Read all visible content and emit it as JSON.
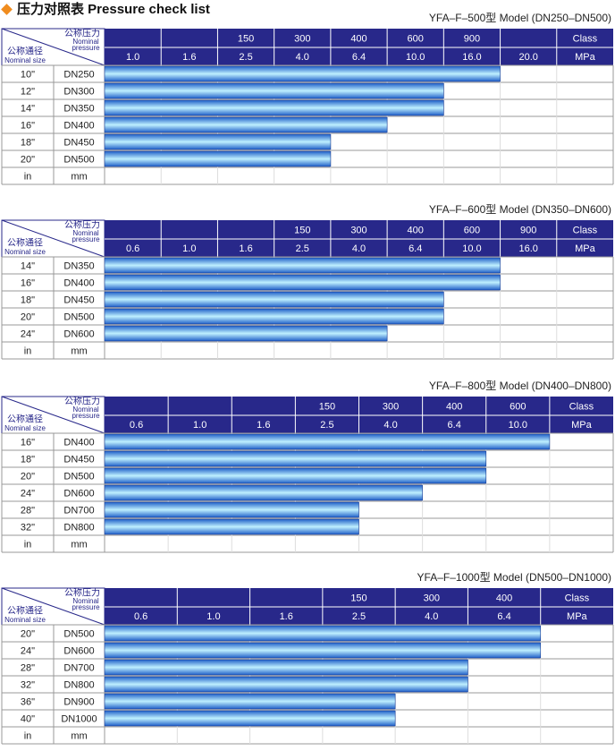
{
  "header": {
    "title": "压力对照表 Pressure check list"
  },
  "corner": {
    "pressure_cn": "公称压力",
    "pressure_en_1": "Nominal",
    "pressure_en_2": "pressure",
    "size_cn": "公称通径",
    "size_en": "Nominal size"
  },
  "tables": [
    {
      "model": "YFA–F–500型  Model (DN250–DN500)",
      "class_row": [
        null,
        null,
        "150",
        "300",
        "400",
        "600",
        "900",
        null,
        "Class"
      ],
      "mpa_row": [
        "1.0",
        "1.6",
        "2.5",
        "4.0",
        "6.4",
        "10.0",
        "16.0",
        "20.0",
        "MPa"
      ],
      "rows": [
        {
          "inch": "10\"",
          "dn": "DN250",
          "rating_mpa": 16.0
        },
        {
          "inch": "12\"",
          "dn": "DN300",
          "rating_mpa": 10.0
        },
        {
          "inch": "14\"",
          "dn": "DN350",
          "rating_mpa": 10.0
        },
        {
          "inch": "16\"",
          "dn": "DN400",
          "rating_mpa": 6.4
        },
        {
          "inch": "18\"",
          "dn": "DN450",
          "rating_mpa": 4.0
        },
        {
          "inch": "20\"",
          "dn": "DN500",
          "rating_mpa": 4.0
        }
      ],
      "unit_row": [
        "in",
        "mm"
      ]
    },
    {
      "model": "YFA–F–600型  Model (DN350–DN600)",
      "class_row": [
        null,
        null,
        null,
        "150",
        "300",
        "400",
        "600",
        "900",
        "Class"
      ],
      "mpa_row": [
        "0.6",
        "1.0",
        "1.6",
        "2.5",
        "4.0",
        "6.4",
        "10.0",
        "16.0",
        "MPa"
      ],
      "rows": [
        {
          "inch": "14\"",
          "dn": "DN350",
          "rating_mpa": 10.0
        },
        {
          "inch": "16\"",
          "dn": "DN400",
          "rating_mpa": 10.0
        },
        {
          "inch": "18\"",
          "dn": "DN450",
          "rating_mpa": 6.4
        },
        {
          "inch": "20\"",
          "dn": "DN500",
          "rating_mpa": 6.4
        },
        {
          "inch": "24\"",
          "dn": "DN600",
          "rating_mpa": 4.0
        }
      ],
      "unit_row": [
        "in",
        "mm"
      ]
    },
    {
      "model": "YFA–F–800型  Model (DN400–DN800)",
      "class_row": [
        null,
        null,
        null,
        "150",
        "300",
        "400",
        "600",
        "Class"
      ],
      "mpa_row": [
        "0.6",
        "1.0",
        "1.6",
        "2.5",
        "4.0",
        "6.4",
        "10.0",
        "MPa"
      ],
      "rows": [
        {
          "inch": "16\"",
          "dn": "DN400",
          "rating_mpa": 10.0
        },
        {
          "inch": "18\"",
          "dn": "DN450",
          "rating_mpa": 6.4
        },
        {
          "inch": "20\"",
          "dn": "DN500",
          "rating_mpa": 6.4
        },
        {
          "inch": "24\"",
          "dn": "DN600",
          "rating_mpa": 4.0
        },
        {
          "inch": "28\"",
          "dn": "DN700",
          "rating_mpa": 2.5
        },
        {
          "inch": "32\"",
          "dn": "DN800",
          "rating_mpa": 2.5
        }
      ],
      "unit_row": [
        "in",
        "mm"
      ]
    },
    {
      "model": "YFA–F–1000型  Model (DN500–DN1000)",
      "class_row": [
        null,
        null,
        null,
        "150",
        "300",
        "400",
        "Class"
      ],
      "mpa_row": [
        "0.6",
        "1.0",
        "1.6",
        "2.5",
        "4.0",
        "6.4",
        "MPa"
      ],
      "rows": [
        {
          "inch": "20\"",
          "dn": "DN500",
          "rating_mpa": 6.4
        },
        {
          "inch": "24\"",
          "dn": "DN600",
          "rating_mpa": 6.4
        },
        {
          "inch": "28\"",
          "dn": "DN700",
          "rating_mpa": 4.0
        },
        {
          "inch": "32\"",
          "dn": "DN800",
          "rating_mpa": 4.0
        },
        {
          "inch": "36\"",
          "dn": "DN900",
          "rating_mpa": 2.5
        },
        {
          "inch": "40\"",
          "dn": "DN1000",
          "rating_mpa": 2.5
        }
      ],
      "unit_row": [
        "in",
        "mm"
      ]
    }
  ]
}
